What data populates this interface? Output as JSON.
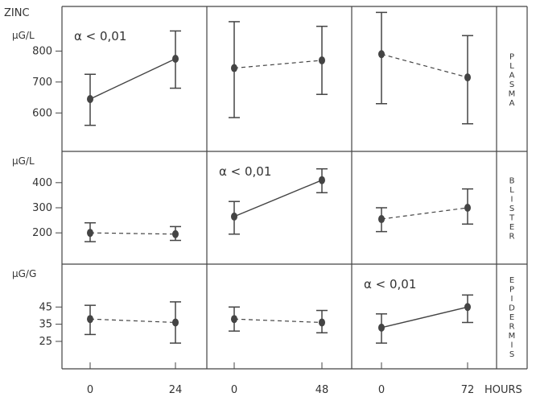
{
  "figure": {
    "title": "ZINC",
    "hours_label": "HOURS"
  },
  "chart_data": [
    {
      "type": "errorbar-line",
      "row": "plasma",
      "row_label": "PLASMA",
      "unit": "µG/L",
      "yticks": [
        600,
        700,
        800
      ],
      "ylim": [
        520,
        900
      ],
      "panels": [
        {
          "x": [
            "0",
            "24"
          ],
          "mean": [
            645,
            775
          ],
          "lower": [
            560,
            680
          ],
          "upper": [
            725,
            865
          ],
          "style": "solid",
          "annotation": "α < 0,01"
        },
        {
          "x": [
            "0",
            "48"
          ],
          "mean": [
            745,
            770
          ],
          "lower": [
            585,
            660
          ],
          "upper": [
            895,
            880
          ],
          "style": "dashed",
          "annotation": ""
        },
        {
          "x": [
            "0",
            "72"
          ],
          "mean": [
            790,
            715
          ],
          "lower": [
            630,
            565
          ],
          "upper": [
            925,
            850
          ],
          "style": "dashed",
          "annotation": ""
        }
      ]
    },
    {
      "type": "errorbar-line",
      "row": "blister",
      "row_label": "BLISTER",
      "unit": "µG/L",
      "yticks": [
        200,
        300,
        400
      ],
      "ylim": [
        130,
        470
      ],
      "panels": [
        {
          "x": [
            "0",
            "24"
          ],
          "mean": [
            200,
            195
          ],
          "lower": [
            165,
            170
          ],
          "upper": [
            240,
            225
          ],
          "style": "dashed",
          "annotation": ""
        },
        {
          "x": [
            "0",
            "48"
          ],
          "mean": [
            265,
            410
          ],
          "lower": [
            195,
            360
          ],
          "upper": [
            325,
            455
          ],
          "style": "solid",
          "annotation": "α < 0,01"
        },
        {
          "x": [
            "0",
            "72"
          ],
          "mean": [
            255,
            300
          ],
          "lower": [
            205,
            235
          ],
          "upper": [
            300,
            375
          ],
          "style": "dashed",
          "annotation": ""
        }
      ]
    },
    {
      "type": "errorbar-line",
      "row": "epidermis",
      "row_label": "EPIDERMIS",
      "unit": "µG/G",
      "yticks": [
        25,
        35,
        45
      ],
      "ylim": [
        17,
        62
      ],
      "panels": [
        {
          "x": [
            "0",
            "24"
          ],
          "mean": [
            38,
            36
          ],
          "lower": [
            29,
            24
          ],
          "upper": [
            46,
            48
          ],
          "style": "dashed",
          "annotation": ""
        },
        {
          "x": [
            "0",
            "48"
          ],
          "mean": [
            38,
            36
          ],
          "lower": [
            31,
            30
          ],
          "upper": [
            45,
            43
          ],
          "style": "dashed",
          "annotation": ""
        },
        {
          "x": [
            "0",
            "72"
          ],
          "mean": [
            33,
            45
          ],
          "lower": [
            24,
            36
          ],
          "upper": [
            41,
            52
          ],
          "style": "solid",
          "annotation": "α < 0,01"
        }
      ]
    }
  ]
}
